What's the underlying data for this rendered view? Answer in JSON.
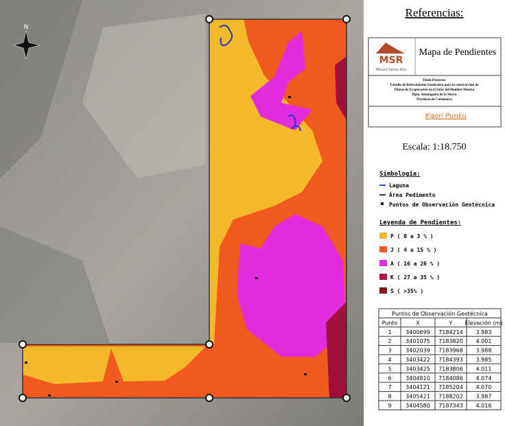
{
  "north_label": "N",
  "references": {
    "title": "Referencias:",
    "logo_text": "MSR",
    "logo_subtitle": "Minera Santa Rita",
    "map_title": "Mapa de Pendientes",
    "project": [
      "Título Proyecto:",
      "Estudio de Relevamiento Geotécnico para la construcción de",
      "Piletas de Evaporación en el Salar del Hombre Muerto",
      "Dpto. Antofagasta de la Sierra",
      "Provincia de Catamarca"
    ],
    "company": "Kgori Punku",
    "scale": "Escala:  1:18.750"
  },
  "symbology": {
    "title": "Simbología:",
    "items": [
      "Laguna",
      "Área Pedimento",
      "Puntos de Observación Geotécnica"
    ]
  },
  "slopes": {
    "title": "Leyenda de Pendientes:",
    "items": [
      "P ( 0 a 3 % )",
      "J ( 4 a 15 % )",
      "A ( 16 a 26 % )",
      "K ( 27 a 35 % )",
      "S ( >35% )"
    ]
  },
  "table": {
    "title": "Puntos de Observación Geotécnica",
    "headers": [
      "Punto",
      "X",
      "Y",
      "Elevación (m)"
    ],
    "rows": [
      [
        "1",
        "3400699",
        "7184214",
        "3.983"
      ],
      [
        "2",
        "3401075",
        "7183820",
        "4.001"
      ],
      [
        "3",
        "3402039",
        "7183968",
        "3.988"
      ],
      [
        "4",
        "3403422",
        "7184393",
        "3.985"
      ],
      [
        "5",
        "3403425",
        "7183806",
        "4.011"
      ],
      [
        "6",
        "3404810",
        "7184086",
        "4.074"
      ],
      [
        "7",
        "3404121",
        "7185204",
        "4.070"
      ],
      [
        "8",
        "3405421",
        "7188202",
        "3.987"
      ],
      [
        "9",
        "3404580",
        "7187343",
        "4.016"
      ]
    ]
  }
}
